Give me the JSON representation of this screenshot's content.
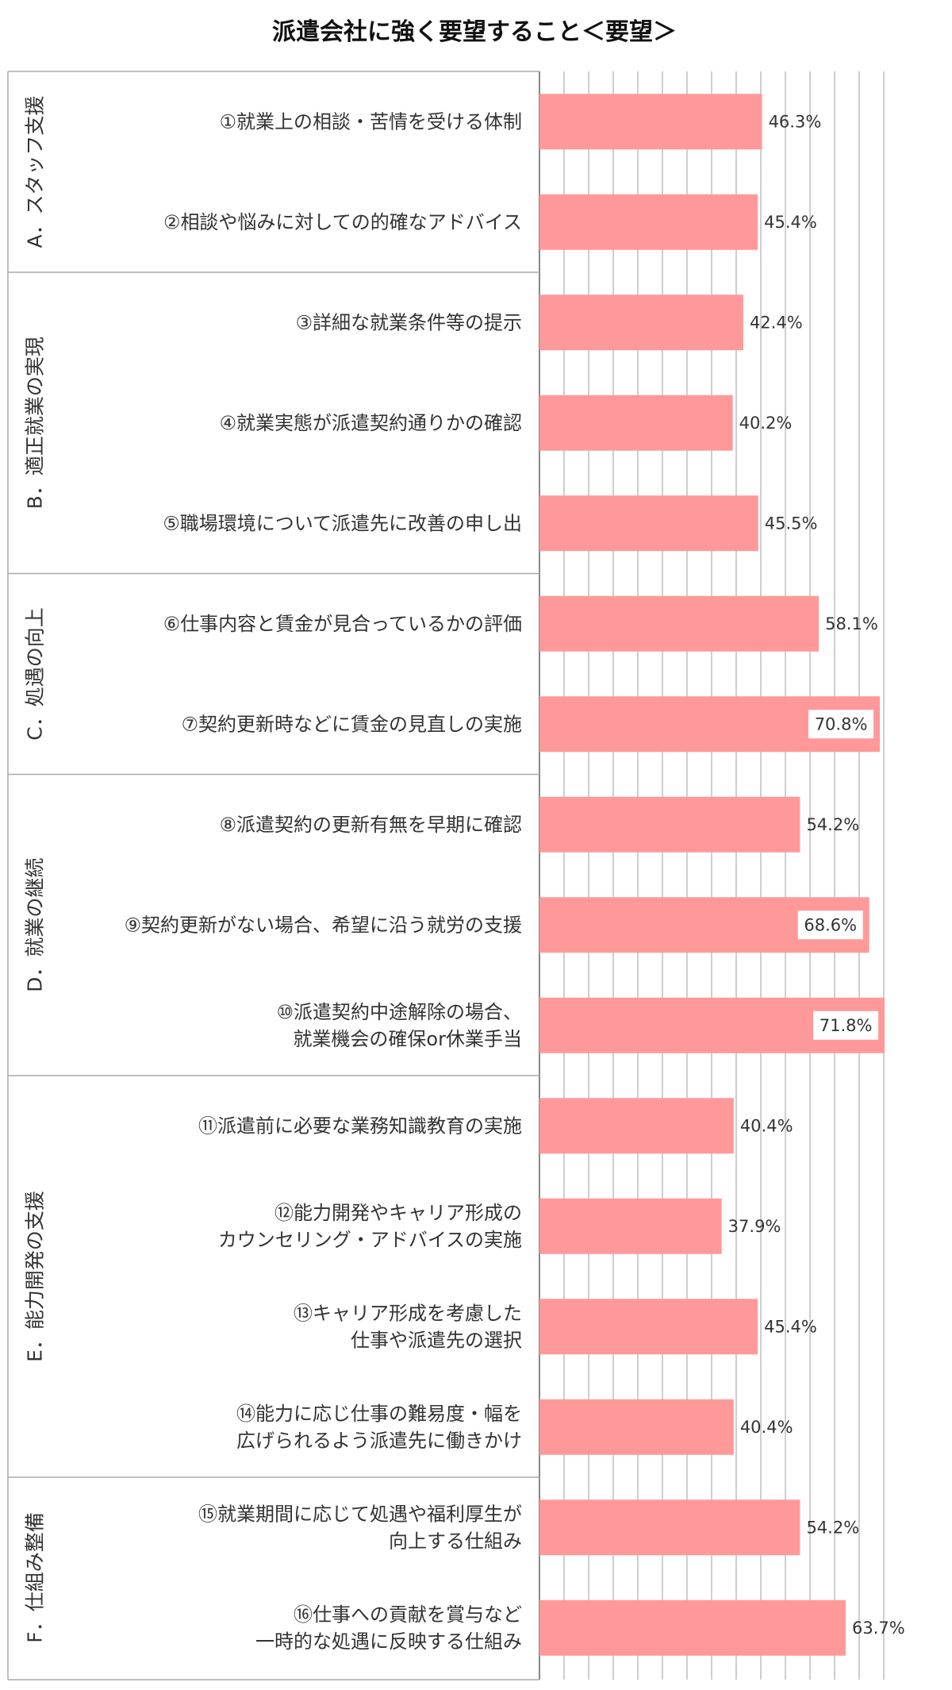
{
  "chart_data": {
    "type": "bar",
    "orientation": "horizontal",
    "title": "派遣会社に強く要望すること＜要望＞",
    "bar_color": "#FF9999",
    "label_box_color": "#FFFFFF",
    "grid": true,
    "xlim": [
      0,
      75
    ],
    "groups": [
      {
        "label": "A．スタッフ支援",
        "items": [
          {
            "label": [
              "①就業上の相談・苦情を受ける体制"
            ],
            "value": 46.3,
            "value_label": "46.3%"
          },
          {
            "label": [
              "②相談や悩みに対しての的確なアドバイス"
            ],
            "value": 45.4,
            "value_label": "45.4%"
          }
        ]
      },
      {
        "label": "B．適正就業の実現",
        "items": [
          {
            "label": [
              "③詳細な就業条件等の提示"
            ],
            "value": 42.4,
            "value_label": "42.4%"
          },
          {
            "label": [
              "④就業実態が派遣契約通りかの確認"
            ],
            "value": 40.2,
            "value_label": "40.2%"
          },
          {
            "label": [
              "⑤職場環境について派遣先に改善の申し出"
            ],
            "value": 45.5,
            "value_label": "45.5%"
          }
        ]
      },
      {
        "label": "C．処遇の向上",
        "items": [
          {
            "label": [
              "⑥仕事内容と賃金が見合っているかの評価"
            ],
            "value": 58.1,
            "value_label": "58.1%"
          },
          {
            "label": [
              "⑦契約更新時などに賃金の見直しの実施"
            ],
            "value": 70.8,
            "value_label": "70.8%"
          }
        ]
      },
      {
        "label": "D．就業の継続",
        "items": [
          {
            "label": [
              "⑧派遣契約の更新有無を早期に確認"
            ],
            "value": 54.2,
            "value_label": "54.2%"
          },
          {
            "label": [
              "⑨契約更新がない場合、希望に沿う就労の支援"
            ],
            "value": 68.6,
            "value_label": "68.6%"
          },
          {
            "label": [
              "⑩派遣契約中途解除の場合、",
              "就業機会の確保or休業手当"
            ],
            "value": 71.8,
            "value_label": "71.8%"
          }
        ]
      },
      {
        "label": "E．能力開発の支援",
        "items": [
          {
            "label": [
              "⑪派遣前に必要な業務知識教育の実施"
            ],
            "value": 40.4,
            "value_label": "40.4%"
          },
          {
            "label": [
              "⑫能力開発やキャリア形成の",
              "カウンセリング・アドバイスの実施"
            ],
            "value": 37.9,
            "value_label": "37.9%"
          },
          {
            "label": [
              "⑬キャリア形成を考慮した",
              "仕事や派遣先の選択"
            ],
            "value": 45.4,
            "value_label": "45.4%"
          },
          {
            "label": [
              "⑭能力に応じ仕事の難易度・幅を",
              "広げられるよう派遣先に働きかけ"
            ],
            "value": 40.4,
            "value_label": "40.4%"
          }
        ]
      },
      {
        "label": "F．仕組み整備",
        "items": [
          {
            "label": [
              "⑮就業期間に応じて処遇や福利厚生が",
              "向上する仕組み"
            ],
            "value": 54.2,
            "value_label": "54.2%"
          },
          {
            "label": [
              "⑯仕事への貢献を賞与など",
              "一時的な処遇に反映する仕組み"
            ],
            "value": 63.7,
            "value_label": "63.7%"
          }
        ]
      }
    ]
  }
}
